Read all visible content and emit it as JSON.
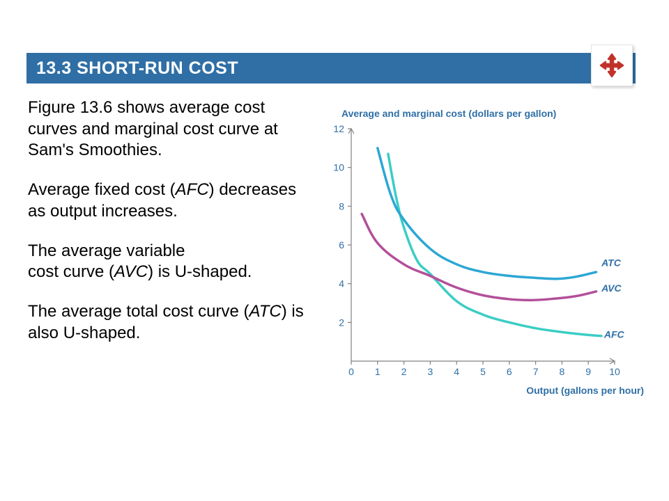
{
  "header": {
    "title": "13.3  SHORT-RUN COST"
  },
  "paragraphs": {
    "p1": "Figure 13.6 shows average cost curves and marginal cost curve at Sam's Smoothies.",
    "p2a": "Average fixed cost (",
    "p2b": "AFC",
    "p2c": ") decreases as output increases.",
    "p3a": "The average variable",
    "p3b": "cost curve (",
    "p3c": "AVC",
    "p3d": ") is U-shaped.",
    "p4a": "The average total cost curve (",
    "p4b": "ATC",
    "p4c": ") is also U-shaped."
  },
  "chart": {
    "type": "line",
    "y_axis_title": "Average and marginal cost (dollars per gallon)",
    "x_axis_title": "Output (gallons per hour)",
    "background_color": "#ffffff",
    "axis_color": "#808080",
    "tick_label_color": "#2f6fa6",
    "xlim": [
      0,
      10
    ],
    "ylim": [
      0,
      12
    ],
    "x_ticks": [
      0,
      1,
      2,
      3,
      4,
      5,
      6,
      7,
      8,
      9,
      10
    ],
    "y_ticks": [
      0,
      2,
      4,
      6,
      8,
      10,
      12
    ],
    "line_width": 3.5,
    "series": {
      "ATC": {
        "label": "ATC",
        "color": "#2ca7d4",
        "points": [
          [
            1.0,
            11.0
          ],
          [
            1.5,
            8.6
          ],
          [
            2.0,
            7.3
          ],
          [
            3.0,
            5.8
          ],
          [
            4.0,
            5.0
          ],
          [
            5.0,
            4.6
          ],
          [
            6.0,
            4.4
          ],
          [
            7.0,
            4.3
          ],
          [
            7.8,
            4.25
          ],
          [
            8.5,
            4.35
          ],
          [
            9.3,
            4.6
          ]
        ],
        "label_pos": [
          9.5,
          4.9
        ]
      },
      "AVC": {
        "label": "AVC",
        "color": "#b34f9a",
        "points": [
          [
            0.4,
            7.6
          ],
          [
            1.0,
            6.1
          ],
          [
            2.0,
            5.0
          ],
          [
            3.0,
            4.4
          ],
          [
            4.0,
            3.8
          ],
          [
            5.0,
            3.4
          ],
          [
            6.0,
            3.2
          ],
          [
            6.8,
            3.15
          ],
          [
            7.5,
            3.2
          ],
          [
            8.5,
            3.35
          ],
          [
            9.3,
            3.6
          ]
        ],
        "label_pos": [
          9.5,
          3.6
        ]
      },
      "AFC": {
        "label": "AFC",
        "color": "#3bcdc4",
        "points": [
          [
            1.4,
            10.7
          ],
          [
            1.7,
            8.5
          ],
          [
            2.0,
            6.9
          ],
          [
            2.5,
            5.2
          ],
          [
            3.0,
            4.5
          ],
          [
            4.0,
            3.1
          ],
          [
            5.0,
            2.4
          ],
          [
            6.0,
            2.0
          ],
          [
            7.0,
            1.7
          ],
          [
            8.0,
            1.5
          ],
          [
            9.0,
            1.35
          ],
          [
            9.5,
            1.3
          ]
        ],
        "label_pos": [
          9.6,
          1.2
        ]
      }
    }
  }
}
